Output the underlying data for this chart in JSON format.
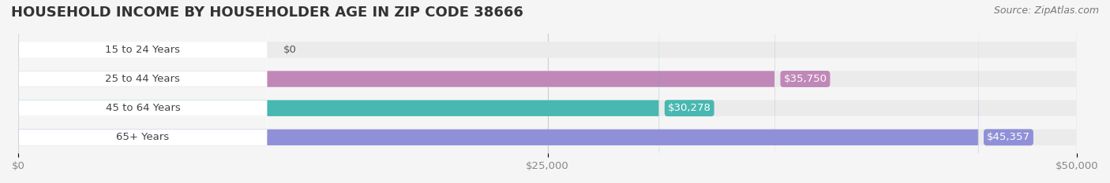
{
  "title": "HOUSEHOLD INCOME BY HOUSEHOLDER AGE IN ZIP CODE 38666",
  "source": "Source: ZipAtlas.com",
  "categories": [
    "15 to 24 Years",
    "25 to 44 Years",
    "45 to 64 Years",
    "65+ Years"
  ],
  "values": [
    0,
    35750,
    30278,
    45357
  ],
  "bar_colors": [
    "#a8c8e8",
    "#c088b8",
    "#48b8b0",
    "#9090d8"
  ],
  "value_labels": [
    "$0",
    "$35,750",
    "$30,278",
    "$45,357"
  ],
  "xlim": [
    0,
    50000
  ],
  "xticks": [
    0,
    25000,
    50000
  ],
  "xticklabels": [
    "$0",
    "$25,000",
    "$50,000"
  ],
  "bg_color": "#f5f5f5",
  "bar_bg_color": "#ebebeb",
  "bar_height": 0.55,
  "label_fontsize": 9.5,
  "title_fontsize": 13,
  "source_fontsize": 9
}
